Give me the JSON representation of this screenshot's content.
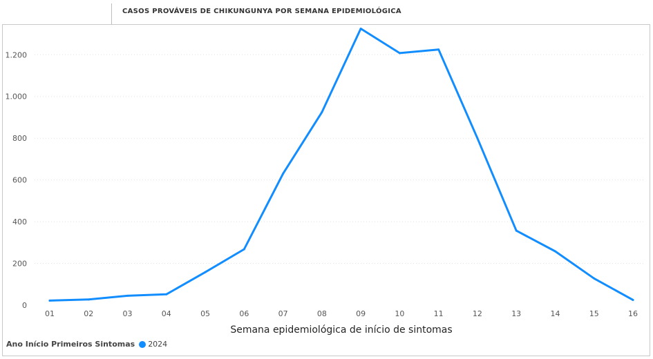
{
  "chart_data": {
    "type": "line",
    "title": "CASOS PROVÁVEIS DE CHIKUNGUNYA POR SEMANA EPIDEMIOLÓGICA",
    "xlabel": "Semana epidemiológica de início de sintomas",
    "ylabel": "",
    "categories": [
      "01",
      "02",
      "03",
      "04",
      "05",
      "06",
      "07",
      "08",
      "09",
      "10",
      "11",
      "12",
      "13",
      "14",
      "15",
      "16"
    ],
    "series": [
      {
        "name": "2024",
        "color": "#118DFF",
        "values": [
          22,
          27,
          45,
          52,
          158,
          268,
          630,
          925,
          1325,
          1208,
          1225,
          800,
          357,
          258,
          128,
          25
        ]
      }
    ],
    "ylim": [
      0,
      1330
    ],
    "yticks": [
      0,
      200,
      400,
      600,
      800,
      1000,
      1200
    ],
    "ytick_labels": [
      "0",
      "200",
      "400",
      "600",
      "800",
      "1.000",
      "1.200"
    ],
    "grid": true,
    "legend_position": "bottom-left"
  },
  "legend": {
    "title": "Ano Início Primeiros Sintomas",
    "item_label": "2024"
  }
}
